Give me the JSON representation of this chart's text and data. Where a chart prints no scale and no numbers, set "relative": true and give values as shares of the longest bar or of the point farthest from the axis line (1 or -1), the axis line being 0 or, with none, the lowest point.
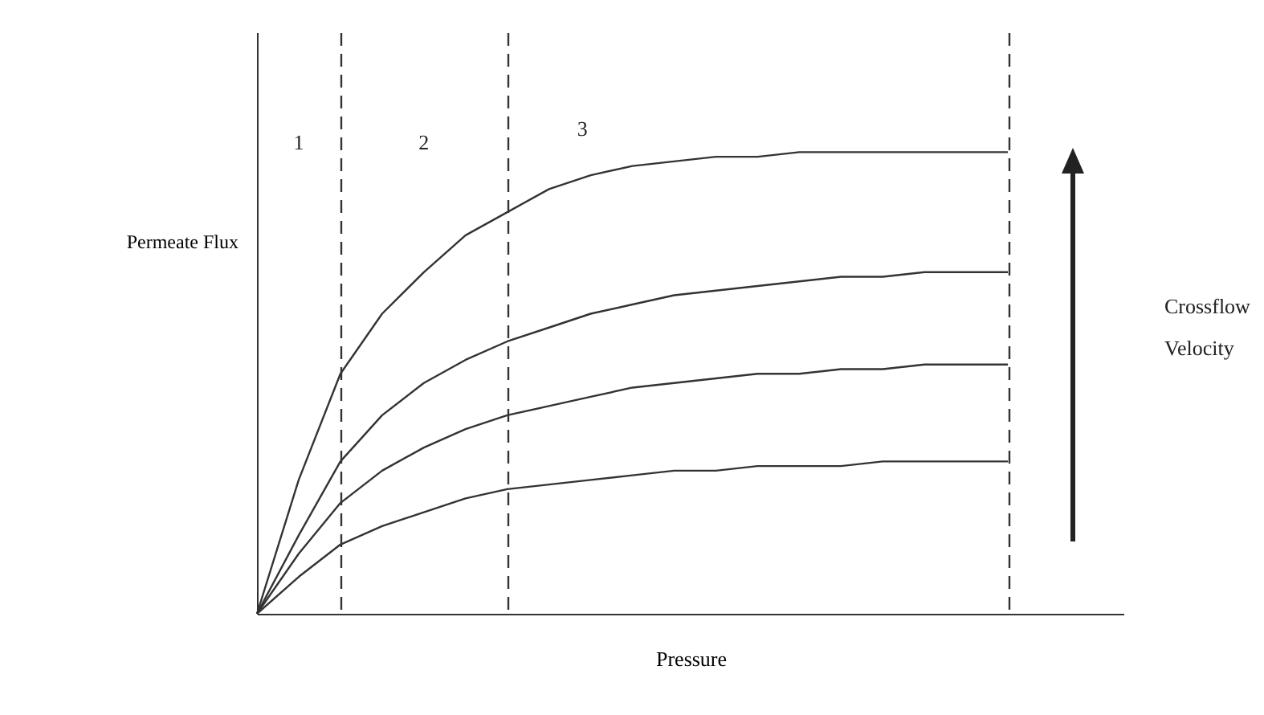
{
  "chart_data": {
    "type": "line",
    "relative": true,
    "xlabel": "Pressure",
    "ylabel": "Permeate Flux",
    "categories": [
      null,
      null,
      null,
      null,
      null,
      null,
      null,
      null,
      null,
      null,
      null,
      null,
      null,
      null,
      null,
      null,
      null,
      null,
      null
    ],
    "series": [
      {
        "color": "#333333",
        "values": [
          0,
          0.29,
          0.52,
          0.65,
          0.74,
          0.82,
          0.87,
          0.92,
          0.95,
          0.97,
          0.98,
          0.99,
          0.99,
          1,
          1,
          1,
          1,
          1,
          1
        ]
      },
      {
        "color": "#333333",
        "values": [
          0,
          0.17,
          0.33,
          0.43,
          0.5,
          0.55,
          0.59,
          0.62,
          0.65,
          0.67,
          0.69,
          0.7,
          0.71,
          0.72,
          0.73,
          0.73,
          0.74,
          0.74,
          0.74
        ]
      },
      {
        "color": "#333333",
        "values": [
          0,
          0.13,
          0.24,
          0.31,
          0.36,
          0.4,
          0.43,
          0.45,
          0.47,
          0.49,
          0.5,
          0.51,
          0.52,
          0.52,
          0.53,
          0.53,
          0.54,
          0.54,
          0.54
        ]
      },
      {
        "color": "#333333",
        "values": [
          0,
          0.08,
          0.15,
          0.19,
          0.22,
          0.25,
          0.27,
          0.28,
          0.29,
          0.3,
          0.31,
          0.31,
          0.32,
          0.32,
          0.32,
          0.33,
          0.33,
          0.33,
          0.33
        ]
      }
    ],
    "line_style": "solid",
    "grid": "x",
    "annotations": [
      "1",
      "2",
      "3",
      "Crossflow\nVelocity"
    ]
  }
}
